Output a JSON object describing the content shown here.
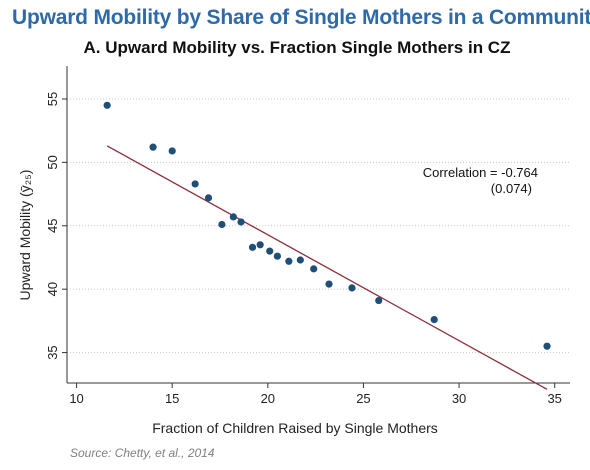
{
  "page": {
    "title": "Upward Mobility by Share of Single Mothers in a Community",
    "source": "Source: Chetty, et al., 2014"
  },
  "chart_data": {
    "type": "scatter",
    "title": "A. Upward Mobility vs. Fraction Single Mothers in CZ",
    "xlabel": "Fraction of Children Raised by Single Mothers",
    "ylabel": "Upward Mobility (ȳ₂₅)",
    "xlim": [
      9.5,
      35.8
    ],
    "ylim": [
      32.6,
      57.6
    ],
    "xticks": [
      10,
      15,
      20,
      25,
      30,
      35
    ],
    "yticks": [
      35,
      40,
      45,
      50,
      55
    ],
    "grid": "horizontal dotted",
    "series": [
      {
        "x": [
          11.6,
          14.0,
          15.0,
          16.2,
          16.9,
          17.6,
          18.2,
          18.6,
          19.2,
          19.6,
          20.1,
          20.5,
          21.1,
          21.7,
          22.4,
          23.2,
          24.4,
          25.8,
          28.7,
          34.6
        ],
        "y": [
          54.5,
          51.2,
          50.9,
          48.3,
          47.2,
          45.1,
          45.7,
          45.3,
          43.3,
          43.5,
          43.0,
          42.6,
          42.2,
          42.3,
          41.6,
          40.4,
          40.1,
          39.1,
          37.6,
          35.5
        ],
        "color": "#1f4e79"
      }
    ],
    "fit_line": {
      "x": [
        11.6,
        34.6
      ],
      "y": [
        51.3,
        32.1
      ],
      "color": "#8b2f3a"
    },
    "annotation": {
      "line1": "Correlation = -0.764",
      "line2": "(0.074)"
    }
  }
}
